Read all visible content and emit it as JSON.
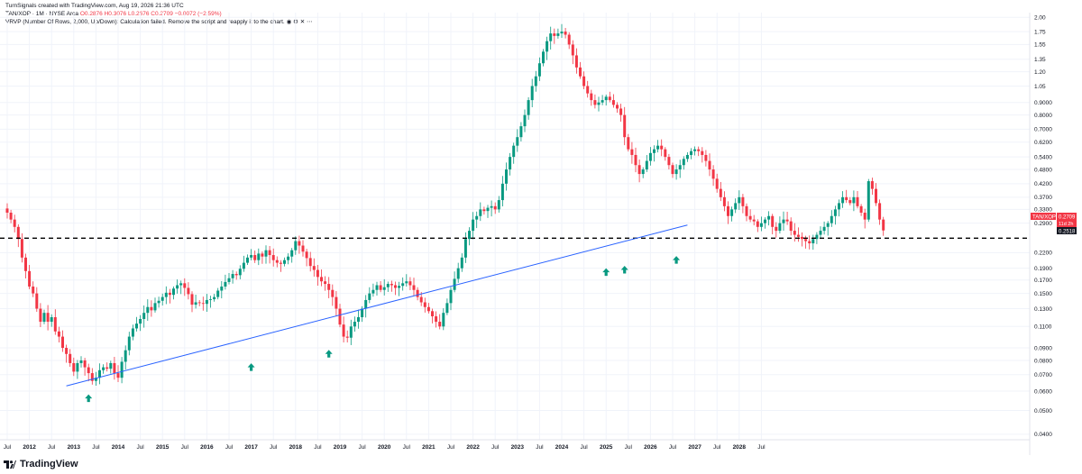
{
  "header": {
    "created_by": "TurnSignals created with TradingView.com, Aug 19, 2026 21:36 UTC",
    "symbol_line": "TAN/XOP · 1M · NYSE Arca",
    "ohlc": "O0.2876 H0.3076 L0.2676 C0.2709 −0.0072 (−2.59%)",
    "indicator_line": "VRVP (Number Of Rows, 2,000, Up/Down): Calculation failed. Remove the script and reapply it to the chart.",
    "indicator_icons": [
      "eye-icon",
      "settings-icon",
      "close-icon",
      "more-icon"
    ]
  },
  "price_labels": {
    "symbol": "TAN/XOP",
    "last": "0.2709",
    "countdown": "11d 2h",
    "level": "0.2518"
  },
  "footer": {
    "logo_text": "TradingView"
  },
  "colors": {
    "up": "#089981",
    "down": "#f23645",
    "trendline": "#2962ff",
    "level_line": "#000000"
  },
  "chart_data": {
    "type": "candlestick",
    "y_scale": "log",
    "ylim": [
      0.038,
      2.2
    ],
    "y_ticks": [
      "2.00",
      "1.75",
      "1.55",
      "1.35",
      "1.20",
      "1.05",
      "0.9000",
      "0.8000",
      "0.7000",
      "0.6200",
      "0.5400",
      "0.4800",
      "0.4200",
      "0.3700",
      "0.3300",
      "0.2900",
      "0.2200",
      "0.1900",
      "0.1700",
      "0.1500",
      "0.1300",
      "0.1100",
      "0.0900",
      "0.0800",
      "0.0700",
      "0.0600",
      "0.0500",
      "0.0400"
    ],
    "x_ticks": [
      "Jul",
      "2012",
      "Jul",
      "2013",
      "Jul",
      "2014",
      "Jul",
      "2015",
      "Jul",
      "2016",
      "Jul",
      "2017",
      "Jul",
      "2018",
      "Jul",
      "2019",
      "Jul",
      "2020",
      "Jul",
      "2021",
      "Jul",
      "2022",
      "Jul",
      "2023",
      "Jul",
      "2024",
      "Jul",
      "2025",
      "Jul",
      "2026",
      "Jul",
      "2027",
      "Jul",
      "2028",
      "Jul"
    ],
    "x_start": "2011-07",
    "horizontal_level": 0.2518,
    "trendline": {
      "start": [
        "2012-11",
        0.063
      ],
      "end": [
        "2026-11",
        0.285
      ]
    },
    "arrows_up": [
      [
        "2013-05",
        0.056
      ],
      [
        "2017-01",
        0.075
      ],
      [
        "2018-10",
        0.085
      ],
      [
        "2025-01",
        0.183
      ],
      [
        "2025-06",
        0.187
      ],
      [
        "2026-08",
        0.205
      ]
    ],
    "closes": [
      0.32,
      0.3,
      0.28,
      0.25,
      0.21,
      0.185,
      0.16,
      0.15,
      0.13,
      0.115,
      0.125,
      0.115,
      0.12,
      0.105,
      0.1,
      0.09,
      0.085,
      0.078,
      0.072,
      0.078,
      0.08,
      0.075,
      0.071,
      0.066,
      0.068,
      0.073,
      0.075,
      0.074,
      0.078,
      0.071,
      0.068,
      0.079,
      0.088,
      0.1,
      0.108,
      0.113,
      0.118,
      0.125,
      0.132,
      0.128,
      0.137,
      0.14,
      0.145,
      0.151,
      0.148,
      0.157,
      0.162,
      0.165,
      0.158,
      0.149,
      0.135,
      0.138,
      0.137,
      0.136,
      0.141,
      0.142,
      0.145,
      0.154,
      0.16,
      0.167,
      0.173,
      0.18,
      0.178,
      0.189,
      0.2,
      0.21,
      0.215,
      0.205,
      0.218,
      0.212,
      0.225,
      0.215,
      0.205,
      0.2,
      0.198,
      0.205,
      0.212,
      0.225,
      0.245,
      0.235,
      0.222,
      0.209,
      0.194,
      0.187,
      0.175,
      0.168,
      0.164,
      0.155,
      0.145,
      0.13,
      0.112,
      0.1,
      0.099,
      0.11,
      0.115,
      0.12,
      0.13,
      0.141,
      0.15,
      0.155,
      0.162,
      0.155,
      0.159,
      0.164,
      0.162,
      0.158,
      0.161,
      0.165,
      0.168,
      0.162,
      0.155,
      0.145,
      0.138,
      0.132,
      0.127,
      0.121,
      0.115,
      0.11,
      0.125,
      0.137,
      0.155,
      0.172,
      0.19,
      0.21,
      0.25,
      0.27,
      0.3,
      0.31,
      0.33,
      0.325,
      0.335,
      0.34,
      0.33,
      0.36,
      0.42,
      0.48,
      0.54,
      0.6,
      0.65,
      0.72,
      0.8,
      0.92,
      1.05,
      1.15,
      1.3,
      1.45,
      1.6,
      1.72,
      1.68,
      1.72,
      1.75,
      1.7,
      1.55,
      1.4,
      1.25,
      1.15,
      1.05,
      0.98,
      0.92,
      0.88,
      0.9,
      0.92,
      0.95,
      0.92,
      0.88,
      0.85,
      0.8,
      0.65,
      0.58,
      0.55,
      0.5,
      0.46,
      0.48,
      0.52,
      0.56,
      0.58,
      0.6,
      0.58,
      0.54,
      0.5,
      0.46,
      0.48,
      0.5,
      0.53,
      0.55,
      0.57,
      0.58,
      0.57,
      0.55,
      0.52,
      0.48,
      0.44,
      0.4,
      0.37,
      0.34,
      0.31,
      0.33,
      0.35,
      0.37,
      0.34,
      0.31,
      0.3,
      0.295,
      0.28,
      0.29,
      0.3,
      0.31,
      0.28,
      0.27,
      0.29,
      0.3,
      0.295,
      0.27,
      0.26,
      0.255,
      0.25,
      0.245,
      0.24,
      0.25,
      0.26,
      0.27,
      0.28,
      0.29,
      0.31,
      0.33,
      0.35,
      0.37,
      0.36,
      0.35,
      0.37,
      0.34,
      0.32,
      0.3,
      0.43,
      0.4,
      0.35,
      0.3,
      0.2709
    ]
  }
}
